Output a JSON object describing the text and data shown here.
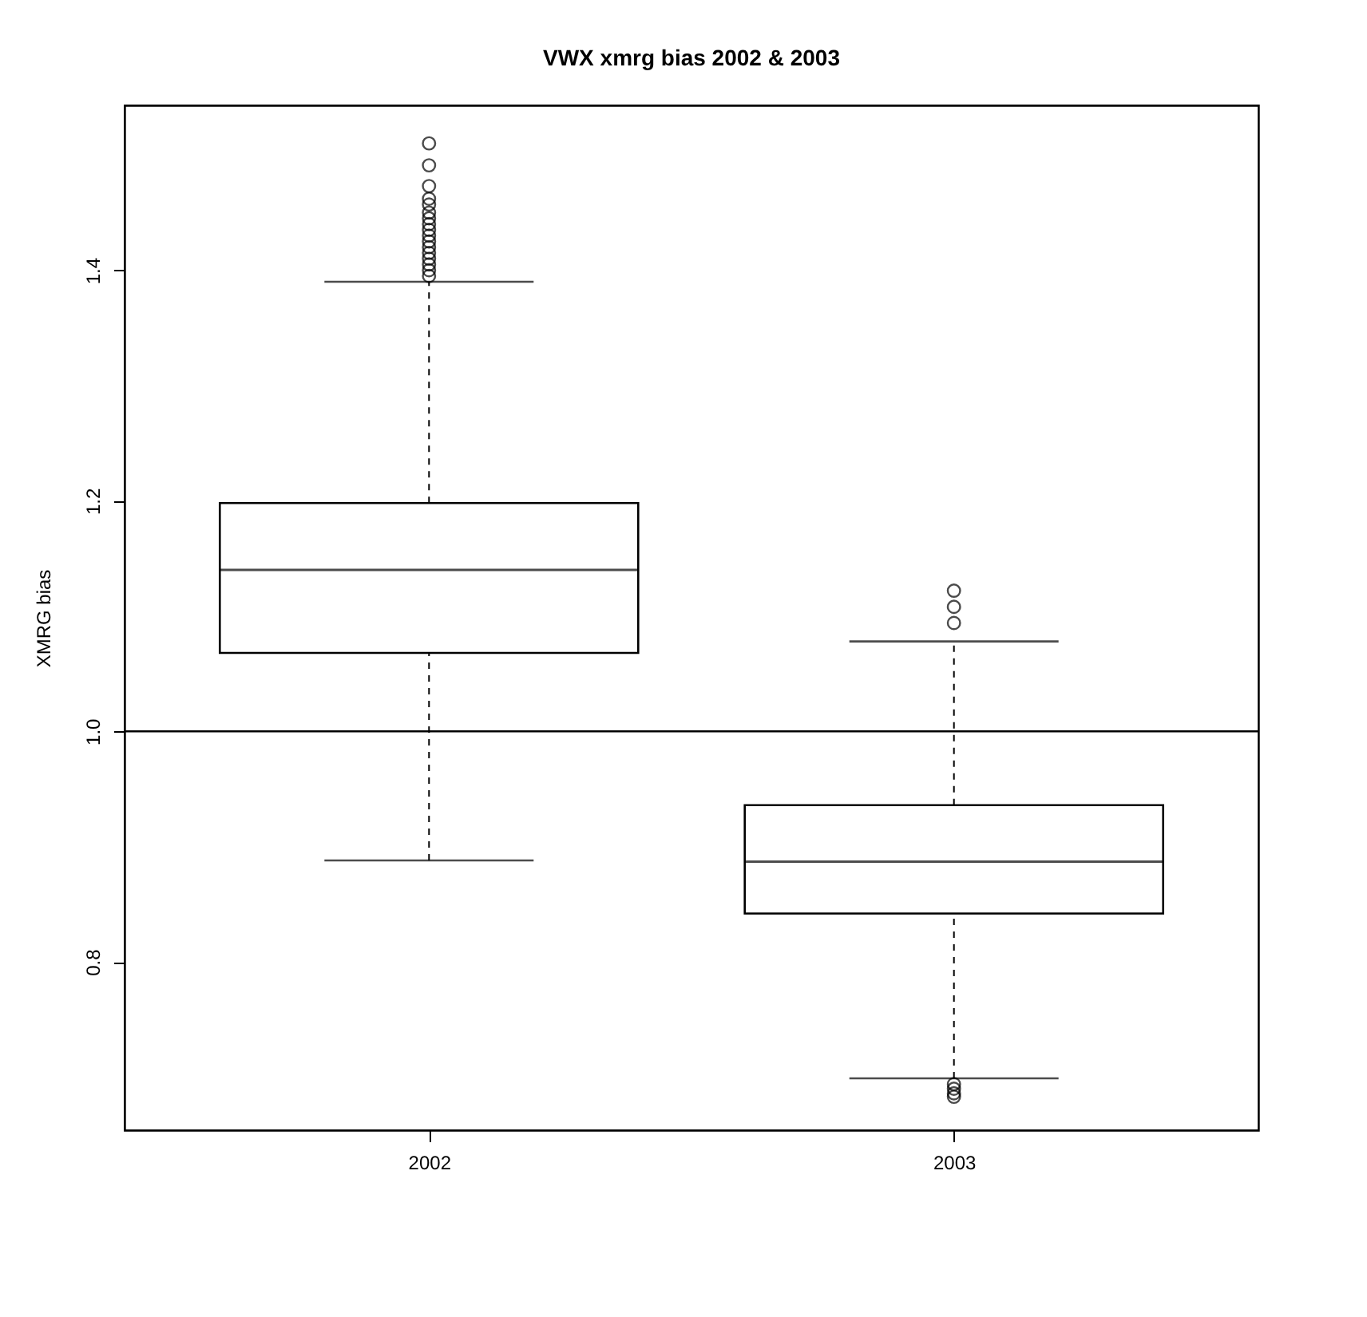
{
  "chart_data": {
    "type": "box",
    "title": "VWX xmrg bias 2002 & 2003",
    "ylabel": "XMRG bias",
    "categories": [
      "2002",
      "2003"
    ],
    "boxes": [
      {
        "low": 0.888,
        "q1": 1.068,
        "median": 1.14,
        "q3": 1.198,
        "high": 1.39,
        "outliers": [
          1.395,
          1.4,
          1.405,
          1.41,
          1.415,
          1.42,
          1.425,
          1.43,
          1.435,
          1.44,
          1.445,
          1.45,
          1.457,
          1.462,
          1.473,
          1.491,
          1.51
        ]
      },
      {
        "low": 0.699,
        "q1": 0.842,
        "median": 0.887,
        "q3": 0.936,
        "high": 1.078,
        "outliers": [
          0.694,
          0.69,
          0.686,
          0.683,
          1.094,
          1.108,
          1.122
        ]
      }
    ],
    "ylim": [
      0.654,
      1.543
    ],
    "yticks": [
      0.8,
      {
        "value": 1.0,
        "label": "1.0"
      },
      1.2,
      1.4
    ],
    "ref_lines": [
      {
        "axis": "y",
        "value": 1.0
      }
    ],
    "grid": false
  }
}
